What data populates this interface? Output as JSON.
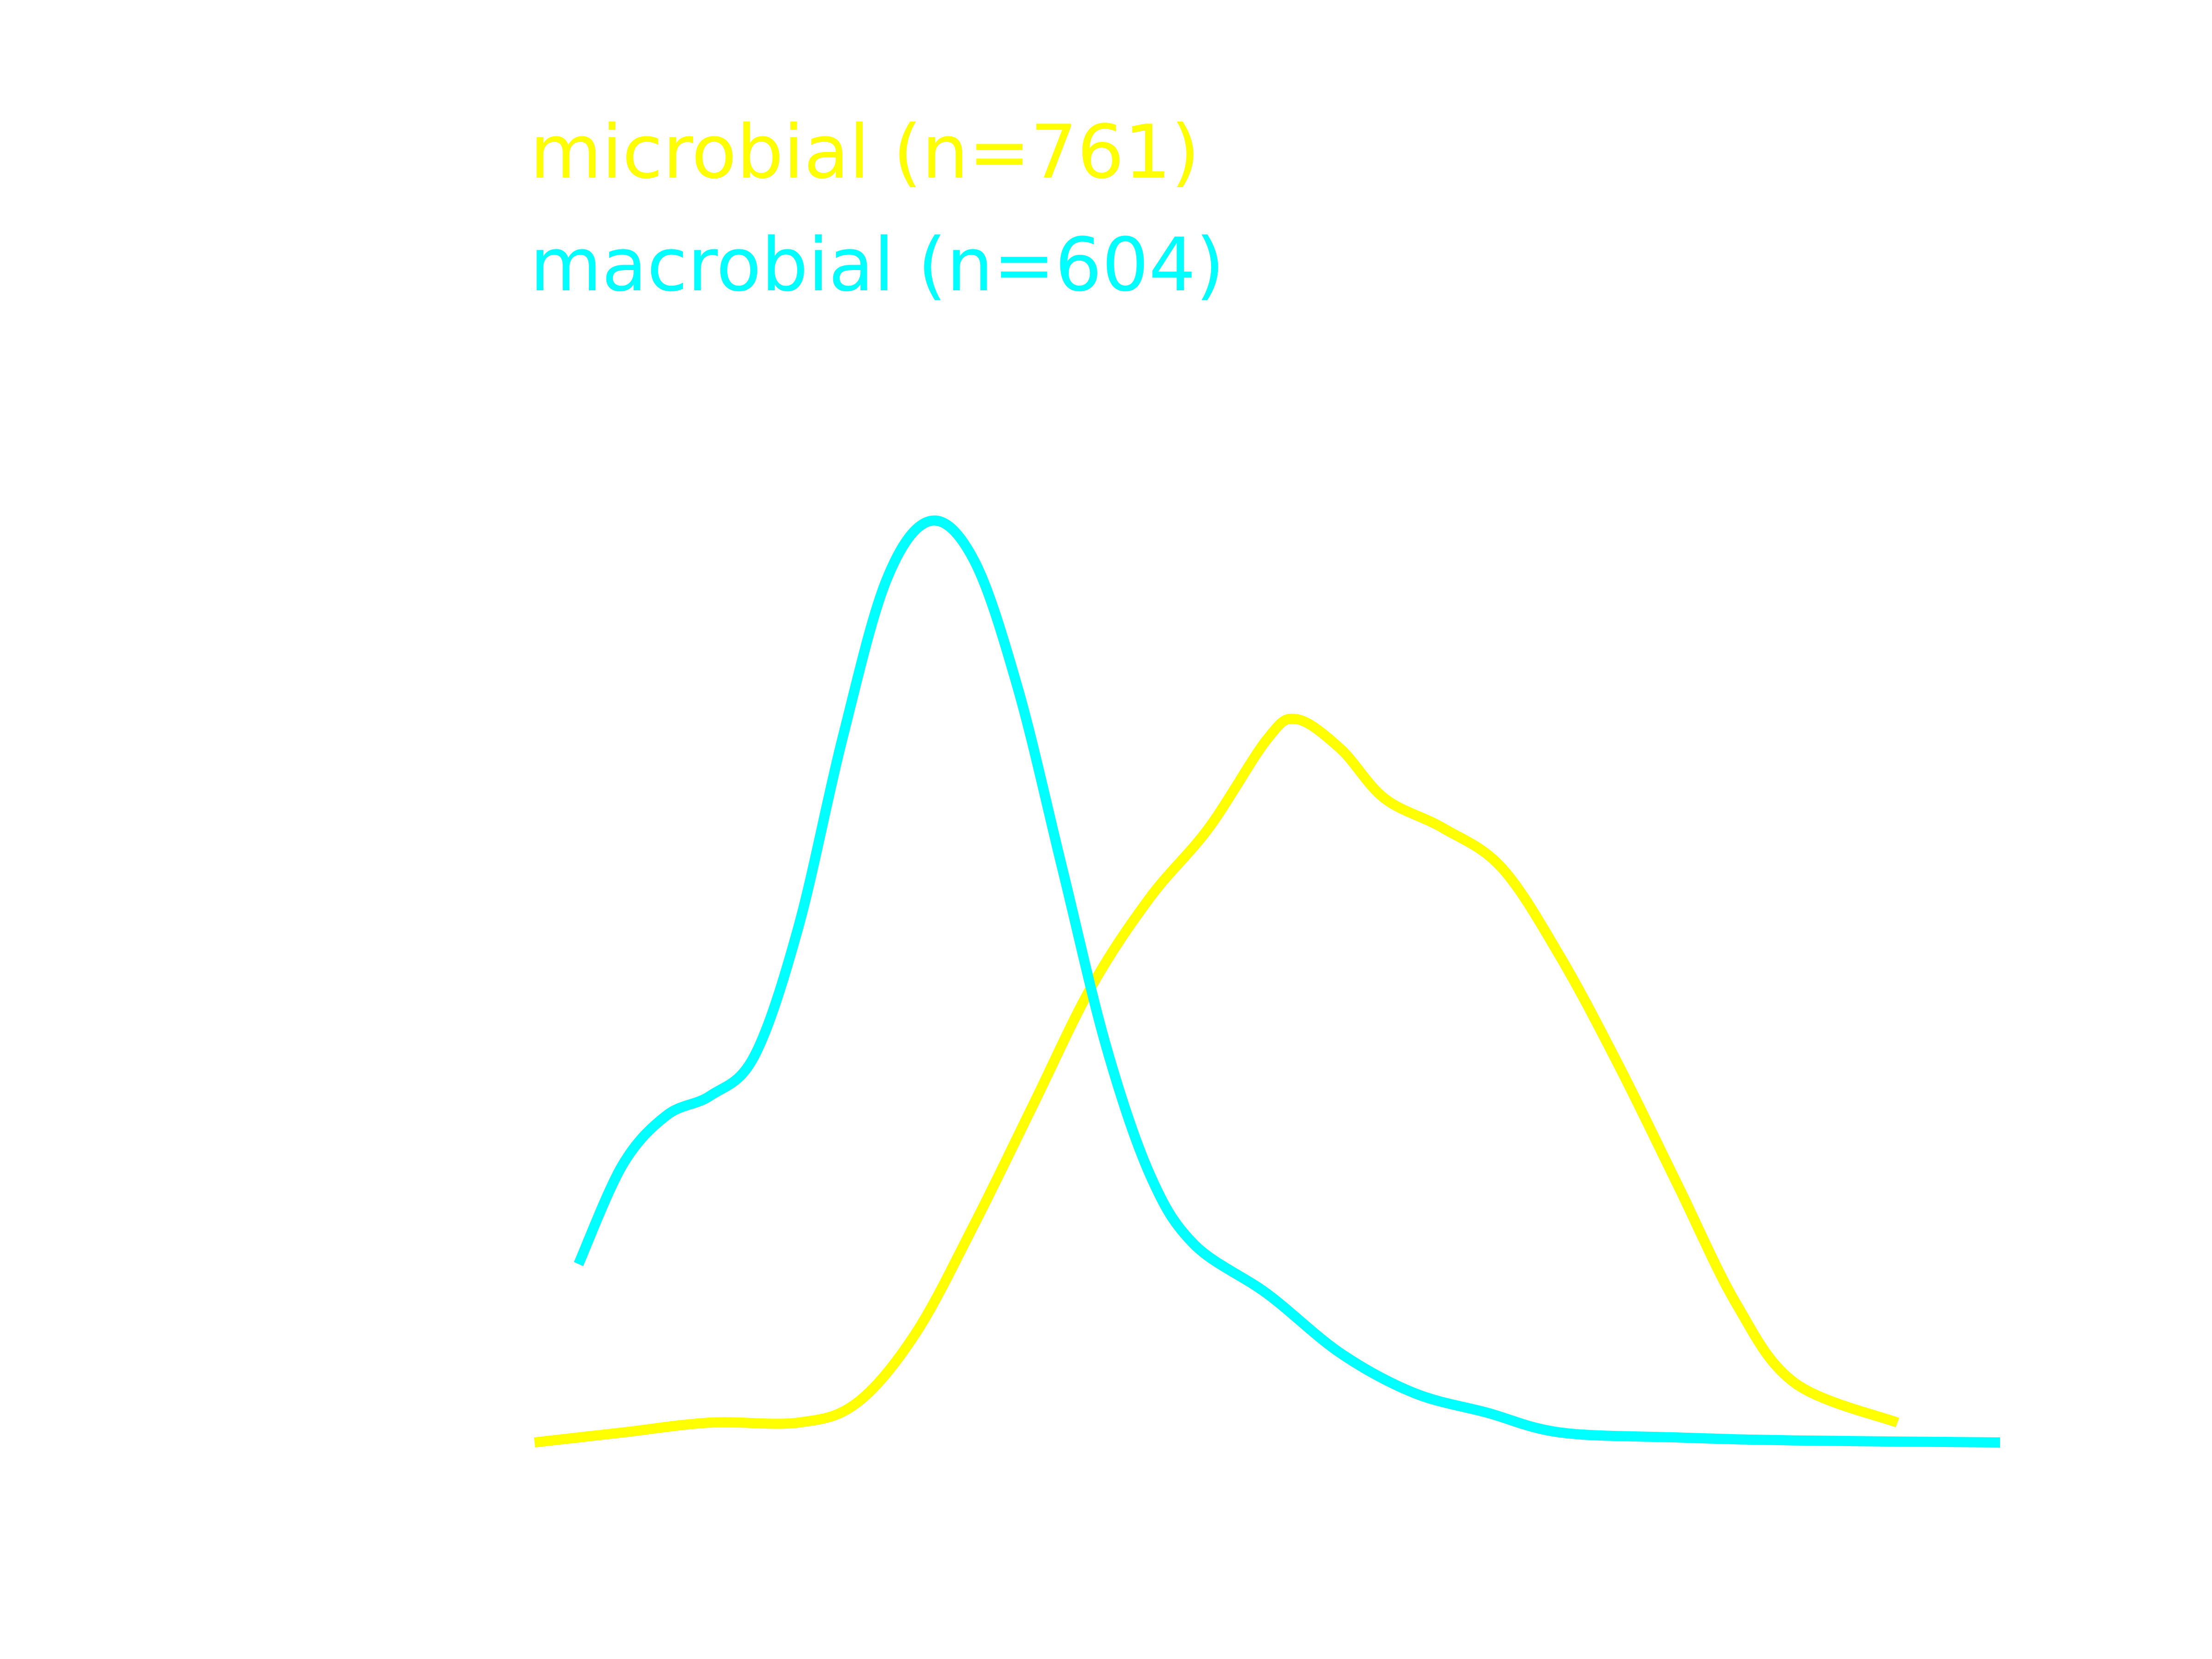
{
  "chart_data": {
    "type": "line",
    "title": "",
    "xlabel": "",
    "ylabel": "",
    "grid": false,
    "axes_visible": false,
    "legend_placement": "top-left",
    "xlim": [
      0,
      1
    ],
    "ylim": [
      0,
      1
    ],
    "series": [
      {
        "name": "microbial (n=761)",
        "color": "#ffff00",
        "points": [
          [
            0.0,
            0.0
          ],
          [
            0.06,
            0.01
          ],
          [
            0.12,
            0.02
          ],
          [
            0.18,
            0.02
          ],
          [
            0.22,
            0.04
          ],
          [
            0.26,
            0.11
          ],
          [
            0.3,
            0.22
          ],
          [
            0.34,
            0.34
          ],
          [
            0.38,
            0.46
          ],
          [
            0.42,
            0.55
          ],
          [
            0.46,
            0.62
          ],
          [
            0.5,
            0.71
          ],
          [
            0.52,
            0.73
          ],
          [
            0.55,
            0.7
          ],
          [
            0.58,
            0.65
          ],
          [
            0.62,
            0.62
          ],
          [
            0.66,
            0.58
          ],
          [
            0.7,
            0.49
          ],
          [
            0.74,
            0.38
          ],
          [
            0.78,
            0.26
          ],
          [
            0.82,
            0.14
          ],
          [
            0.86,
            0.06
          ],
          [
            0.93,
            0.02
          ]
        ]
      },
      {
        "name": "macrobial (n=604)",
        "color": "#00ffff",
        "points": [
          [
            0.03,
            0.18
          ],
          [
            0.06,
            0.28
          ],
          [
            0.09,
            0.33
          ],
          [
            0.12,
            0.35
          ],
          [
            0.15,
            0.39
          ],
          [
            0.18,
            0.52
          ],
          [
            0.21,
            0.71
          ],
          [
            0.24,
            0.87
          ],
          [
            0.27,
            0.93
          ],
          [
            0.3,
            0.89
          ],
          [
            0.33,
            0.76
          ],
          [
            0.36,
            0.58
          ],
          [
            0.39,
            0.4
          ],
          [
            0.42,
            0.27
          ],
          [
            0.45,
            0.2
          ],
          [
            0.5,
            0.15
          ],
          [
            0.55,
            0.09
          ],
          [
            0.6,
            0.05
          ],
          [
            0.65,
            0.03
          ],
          [
            0.7,
            0.01
          ],
          [
            0.78,
            0.005
          ],
          [
            0.86,
            0.002
          ],
          [
            1.0,
            0.0
          ]
        ]
      }
    ]
  }
}
